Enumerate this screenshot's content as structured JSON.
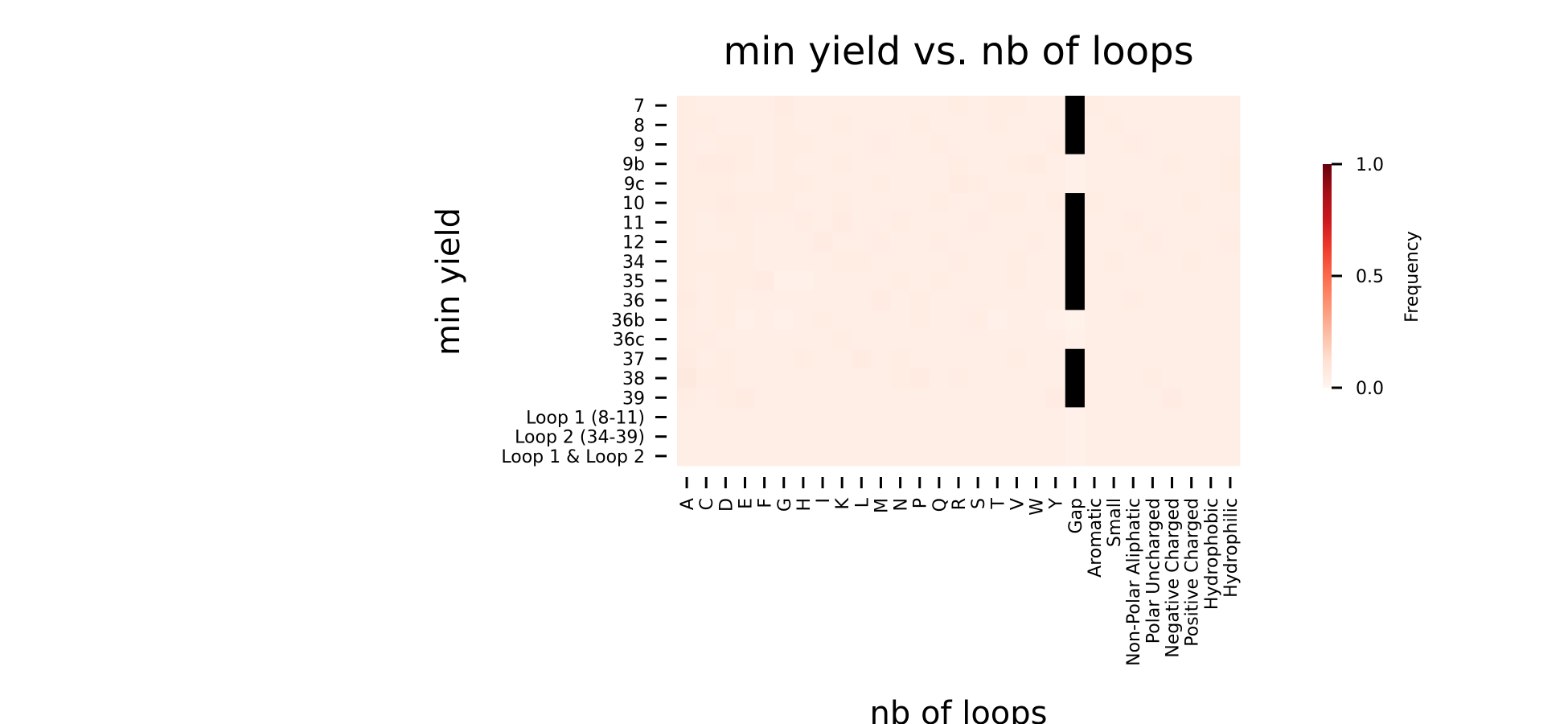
{
  "chart_data": {
    "type": "heatmap",
    "title": "min yield vs. nb of loops",
    "xlabel": "nb of loops",
    "ylabel": "min yield",
    "rows": [
      "7",
      "8",
      "9",
      "9b",
      "9c",
      "10",
      "11",
      "12",
      "34",
      "35",
      "36",
      "36b",
      "36c",
      "37",
      "38",
      "39",
      "Loop 1 (8-11)",
      "Loop 2 (34-39)",
      "Loop 1 & Loop 2"
    ],
    "columns": [
      "A",
      "C",
      "D",
      "E",
      "F",
      "G",
      "H",
      "I",
      "K",
      "L",
      "M",
      "N",
      "P",
      "Q",
      "R",
      "S",
      "T",
      "V",
      "W",
      "Y",
      "Gap",
      "Aromatic",
      "Small",
      "Non-Polar Aliphatic",
      "Polar Uncharged",
      "Negative Charged",
      "Positive Charged",
      "Hydrophobic",
      "Hydrophilic"
    ],
    "values": [
      [
        0.05,
        0.04,
        0.04,
        0.04,
        0.04,
        0.06,
        0.04,
        0.04,
        0.04,
        0.04,
        0.04,
        0.04,
        0.04,
        0.04,
        0.05,
        0.04,
        0.05,
        0.05,
        0.04,
        0.04,
        1.0,
        0.05,
        0.04,
        0.04,
        0.04,
        0.04,
        0.04,
        0.04,
        0.04
      ],
      [
        0.05,
        0.05,
        0.04,
        0.04,
        0.04,
        0.05,
        0.04,
        0.04,
        0.05,
        0.04,
        0.04,
        0.04,
        0.05,
        0.04,
        0.04,
        0.04,
        0.05,
        0.04,
        0.04,
        0.04,
        1.0,
        0.04,
        0.05,
        0.04,
        0.04,
        0.04,
        0.04,
        0.04,
        0.04
      ],
      [
        0.05,
        0.04,
        0.05,
        0.05,
        0.04,
        0.05,
        0.05,
        0.04,
        0.04,
        0.04,
        0.05,
        0.04,
        0.04,
        0.05,
        0.04,
        0.04,
        0.04,
        0.04,
        0.04,
        0.05,
        1.0,
        0.04,
        0.04,
        0.05,
        0.04,
        0.04,
        0.04,
        0.04,
        0.04
      ],
      [
        0.05,
        0.06,
        0.06,
        0.05,
        0.04,
        0.05,
        0.04,
        0.04,
        0.05,
        0.04,
        0.04,
        0.04,
        0.04,
        0.04,
        0.05,
        0.04,
        0.04,
        0.05,
        0.06,
        0.04,
        0.03,
        0.04,
        0.04,
        0.04,
        0.04,
        0.05,
        0.04,
        0.04,
        0.05
      ],
      [
        0.05,
        0.05,
        0.05,
        0.04,
        0.04,
        0.05,
        0.05,
        0.04,
        0.04,
        0.04,
        0.05,
        0.04,
        0.04,
        0.04,
        0.06,
        0.05,
        0.04,
        0.04,
        0.04,
        0.04,
        0.03,
        0.04,
        0.04,
        0.04,
        0.04,
        0.04,
        0.04,
        0.04,
        0.05
      ],
      [
        0.05,
        0.05,
        0.06,
        0.05,
        0.05,
        0.05,
        0.04,
        0.04,
        0.05,
        0.04,
        0.04,
        0.04,
        0.04,
        0.05,
        0.04,
        0.04,
        0.05,
        0.05,
        0.04,
        0.05,
        1.0,
        0.05,
        0.04,
        0.04,
        0.04,
        0.04,
        0.05,
        0.04,
        0.04
      ],
      [
        0.05,
        0.04,
        0.05,
        0.05,
        0.04,
        0.04,
        0.05,
        0.04,
        0.06,
        0.04,
        0.04,
        0.05,
        0.04,
        0.04,
        0.04,
        0.05,
        0.04,
        0.04,
        0.04,
        0.04,
        1.0,
        0.04,
        0.04,
        0.05,
        0.04,
        0.04,
        0.04,
        0.04,
        0.04
      ],
      [
        0.05,
        0.04,
        0.04,
        0.05,
        0.04,
        0.04,
        0.04,
        0.06,
        0.04,
        0.04,
        0.05,
        0.04,
        0.04,
        0.05,
        0.04,
        0.04,
        0.04,
        0.04,
        0.05,
        0.04,
        1.0,
        0.04,
        0.04,
        0.04,
        0.05,
        0.04,
        0.04,
        0.04,
        0.05
      ],
      [
        0.05,
        0.05,
        0.05,
        0.05,
        0.04,
        0.04,
        0.04,
        0.04,
        0.05,
        0.05,
        0.04,
        0.04,
        0.04,
        0.04,
        0.05,
        0.04,
        0.04,
        0.05,
        0.04,
        0.04,
        1.0,
        0.04,
        0.05,
        0.04,
        0.04,
        0.04,
        0.05,
        0.04,
        0.04
      ],
      [
        0.05,
        0.04,
        0.05,
        0.05,
        0.06,
        0.03,
        0.03,
        0.04,
        0.04,
        0.04,
        0.04,
        0.05,
        0.04,
        0.05,
        0.04,
        0.04,
        0.04,
        0.05,
        0.04,
        0.04,
        1.0,
        0.04,
        0.04,
        0.04,
        0.04,
        0.04,
        0.04,
        0.04,
        0.04
      ],
      [
        0.06,
        0.04,
        0.05,
        0.04,
        0.04,
        0.04,
        0.04,
        0.04,
        0.04,
        0.04,
        0.06,
        0.04,
        0.05,
        0.04,
        0.04,
        0.04,
        0.04,
        0.04,
        0.04,
        0.04,
        1.0,
        0.04,
        0.04,
        0.05,
        0.04,
        0.04,
        0.04,
        0.04,
        0.04
      ],
      [
        0.05,
        0.04,
        0.05,
        0.03,
        0.04,
        0.03,
        0.04,
        0.05,
        0.04,
        0.04,
        0.04,
        0.04,
        0.05,
        0.04,
        0.04,
        0.05,
        0.03,
        0.04,
        0.04,
        0.03,
        0.02,
        0.04,
        0.04,
        0.04,
        0.04,
        0.04,
        0.04,
        0.04,
        0.04
      ],
      [
        0.05,
        0.05,
        0.04,
        0.04,
        0.04,
        0.04,
        0.04,
        0.04,
        0.05,
        0.04,
        0.04,
        0.04,
        0.04,
        0.04,
        0.04,
        0.04,
        0.04,
        0.04,
        0.04,
        0.04,
        0.03,
        0.04,
        0.04,
        0.04,
        0.04,
        0.04,
        0.04,
        0.04,
        0.04
      ],
      [
        0.06,
        0.04,
        0.05,
        0.04,
        0.04,
        0.04,
        0.05,
        0.04,
        0.04,
        0.06,
        0.04,
        0.05,
        0.04,
        0.04,
        0.04,
        0.04,
        0.04,
        0.05,
        0.04,
        0.04,
        1.0,
        0.04,
        0.04,
        0.04,
        0.04,
        0.04,
        0.04,
        0.04,
        0.04
      ],
      [
        0.07,
        0.05,
        0.05,
        0.04,
        0.04,
        0.04,
        0.04,
        0.04,
        0.04,
        0.04,
        0.04,
        0.05,
        0.06,
        0.04,
        0.05,
        0.04,
        0.04,
        0.04,
        0.04,
        0.04,
        1.0,
        0.04,
        0.04,
        0.04,
        0.05,
        0.04,
        0.04,
        0.04,
        0.04
      ],
      [
        0.05,
        0.04,
        0.05,
        0.06,
        0.04,
        0.04,
        0.04,
        0.04,
        0.04,
        0.04,
        0.04,
        0.04,
        0.04,
        0.04,
        0.04,
        0.04,
        0.04,
        0.04,
        0.04,
        0.06,
        1.0,
        0.04,
        0.04,
        0.04,
        0.04,
        0.06,
        0.04,
        0.04,
        0.04
      ],
      [
        0.04,
        0.04,
        0.04,
        0.04,
        0.04,
        0.04,
        0.04,
        0.04,
        0.04,
        0.04,
        0.04,
        0.04,
        0.04,
        0.04,
        0.04,
        0.04,
        0.04,
        0.04,
        0.04,
        0.04,
        0.03,
        0.04,
        0.04,
        0.04,
        0.04,
        0.04,
        0.04,
        0.04,
        0.04
      ],
      [
        0.04,
        0.04,
        0.04,
        0.04,
        0.04,
        0.04,
        0.04,
        0.04,
        0.04,
        0.04,
        0.04,
        0.04,
        0.04,
        0.04,
        0.04,
        0.04,
        0.04,
        0.04,
        0.04,
        0.04,
        0.03,
        0.04,
        0.04,
        0.04,
        0.04,
        0.04,
        0.04,
        0.04,
        0.04
      ],
      [
        0.04,
        0.04,
        0.04,
        0.04,
        0.04,
        0.04,
        0.04,
        0.04,
        0.04,
        0.04,
        0.04,
        0.04,
        0.04,
        0.04,
        0.04,
        0.04,
        0.04,
        0.04,
        0.04,
        0.04,
        0.03,
        0.04,
        0.04,
        0.04,
        0.04,
        0.04,
        0.04,
        0.04,
        0.04
      ]
    ],
    "masked_color": "#000000",
    "masked_cells_note": "Gap column cells appearing black are NaN/masked (rendered black)",
    "colormap": "Reds",
    "colorbar": {
      "label": "Frequency",
      "range": [
        0.0,
        1.0
      ],
      "ticks": [
        0.0,
        0.5,
        1.0
      ],
      "tick_labels": [
        "0.0",
        "0.5",
        "1.0"
      ]
    },
    "grid": false,
    "legend": "none"
  }
}
